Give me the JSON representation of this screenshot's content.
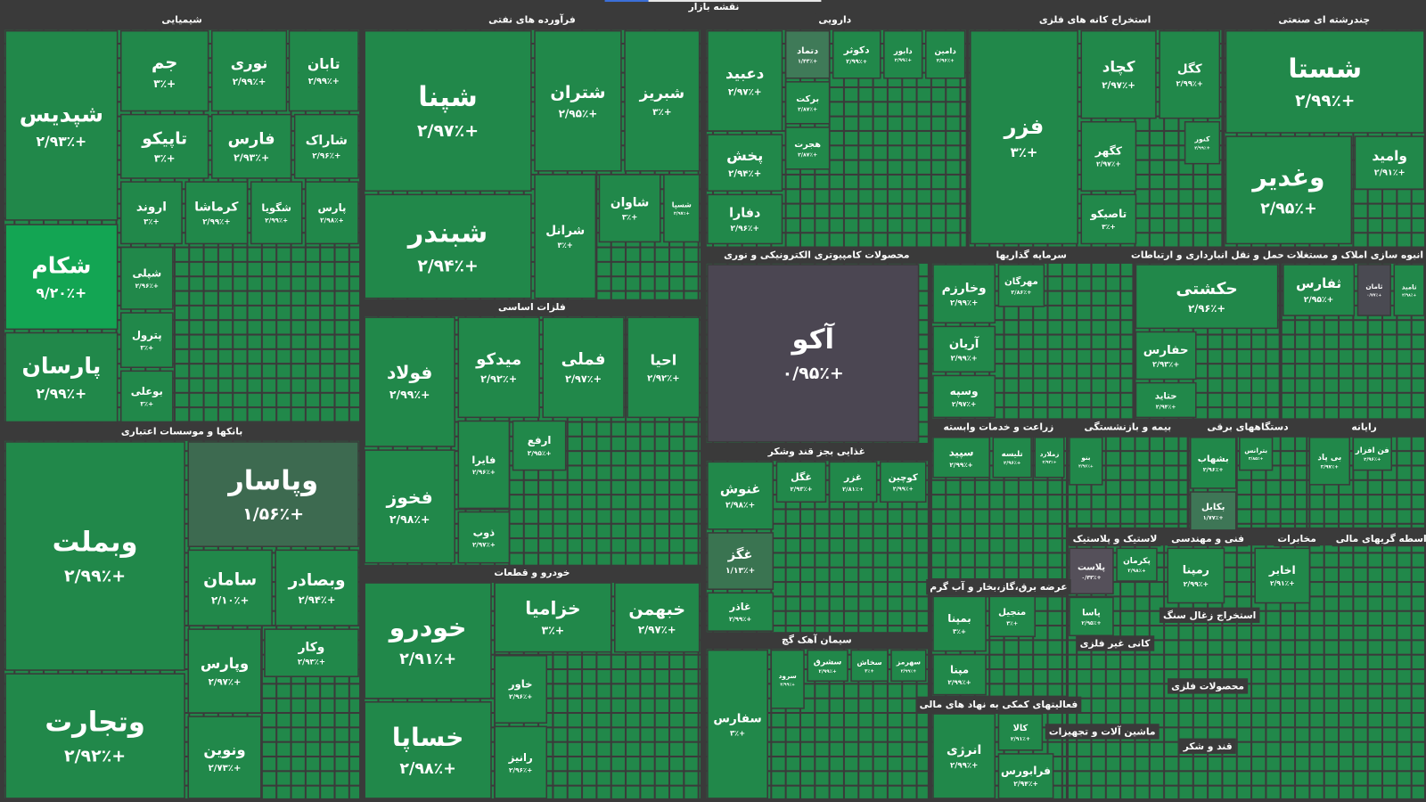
{
  "chart_data": {
    "type": "treemap",
    "title": "نقشه بازار",
    "color": "#21884a",
    "sectors": [
      {
        "name": "شیمیایی",
        "tiles": [
          {
            "name": "شپدیس",
            "value": 2.93,
            "value_label": "+۲/۹۳٪"
          },
          {
            "name": "جم",
            "value": 3,
            "value_label": "+۳٪"
          },
          {
            "name": "نوری",
            "value": 2.99,
            "value_label": "+۲/۹۹٪"
          },
          {
            "name": "تابان",
            "value": 2.99,
            "value_label": "+۲/۹۹٪"
          },
          {
            "name": "تاپیکو",
            "value": 3,
            "value_label": "+۳٪"
          },
          {
            "name": "فارس",
            "value": 2.93,
            "value_label": "+۲/۹۳٪"
          },
          {
            "name": "شاراک",
            "value": 2.96,
            "value_label": "+۲/۹۶٪"
          },
          {
            "name": "شکام",
            "value": 9.2,
            "value_label": "+۹/۲۰٪",
            "color": "#13a553"
          },
          {
            "name": "اروند",
            "value": 3,
            "value_label": "+۳٪"
          },
          {
            "name": "کرماشا",
            "value": 2.99,
            "value_label": "+۲/۹۹٪"
          },
          {
            "name": "شگویا",
            "value": 2.99,
            "value_label": "+۲/۹۹٪"
          },
          {
            "name": "پارس",
            "value": 2.98,
            "value_label": "+۲/۹۸٪"
          },
          {
            "name": "پارسان",
            "value": 2.99,
            "value_label": "+۲/۹۹٪"
          },
          {
            "name": "شپلی",
            "value": 2.96,
            "value_label": "+۲/۹۶٪"
          },
          {
            "name": "پترول",
            "value": 3,
            "value_label": "+۳٪"
          },
          {
            "name": "بوعلی",
            "value": 3,
            "value_label": "+۳٪"
          }
        ]
      },
      {
        "name": "بانکها و موسسات اعتباری",
        "tiles": [
          {
            "name": "وبملت",
            "value": 2.99,
            "value_label": "+۲/۹۹٪"
          },
          {
            "name": "وپاسار",
            "value": 1.56,
            "value_label": "+۱/۵۶٪",
            "color": "#3d6a50"
          },
          {
            "name": "وتجارت",
            "value": 2.92,
            "value_label": "+۲/۹۲٪"
          },
          {
            "name": "سامان",
            "value": 2.1,
            "value_label": "+۲/۱۰٪"
          },
          {
            "name": "وبصادر",
            "value": 2.94,
            "value_label": "+۲/۹۴٪"
          },
          {
            "name": "وپارس",
            "value": 2.97,
            "value_label": "+۲/۹۷٪"
          },
          {
            "name": "ونوین",
            "value": 2.73,
            "value_label": "+۲/۷۳٪"
          },
          {
            "name": "وکار",
            "value": 2.93,
            "value_label": "+۲/۹۳٪"
          }
        ]
      },
      {
        "name": "فرآورده های نفتی",
        "tiles": [
          {
            "name": "شپنا",
            "value": 2.97,
            "value_label": "+۲/۹۷٪"
          },
          {
            "name": "شتران",
            "value": 2.95,
            "value_label": "+۲/۹۵٪"
          },
          {
            "name": "شبریز",
            "value": 3,
            "value_label": "+۳٪"
          },
          {
            "name": "شبندر",
            "value": 2.94,
            "value_label": "+۲/۹۴٪"
          },
          {
            "name": "شرانل",
            "value": 3,
            "value_label": "+۳٪"
          },
          {
            "name": "شاوان",
            "value": 3,
            "value_label": "+۳٪"
          },
          {
            "name": "شسپا",
            "value": 2.97,
            "value_label": "+۲/۹۷٪"
          }
        ]
      },
      {
        "name": "فلزات اساسی",
        "tiles": [
          {
            "name": "فولاد",
            "value": 2.99,
            "value_label": "+۲/۹۹٪"
          },
          {
            "name": "میدکو",
            "value": 2.92,
            "value_label": "+۲/۹۲٪"
          },
          {
            "name": "فملی",
            "value": 2.97,
            "value_label": "+۲/۹۷٪"
          },
          {
            "name": "احیا",
            "value": 2.92,
            "value_label": "+۲/۹۲٪"
          },
          {
            "name": "فخوز",
            "value": 2.98,
            "value_label": "+۲/۹۸٪"
          },
          {
            "name": "فایرا",
            "value": 2.96,
            "value_label": "+۲/۹۶٪"
          },
          {
            "name": "ذوب",
            "value": 2.97,
            "value_label": "+۲/۹۷٪"
          },
          {
            "name": "ارفع",
            "value": 2.95,
            "value_label": "+۲/۹۵٪"
          }
        ]
      },
      {
        "name": "خودرو و قطعات",
        "tiles": [
          {
            "name": "خودرو",
            "value": 2.91,
            "value_label": "+۲/۹۱٪"
          },
          {
            "name": "خساپا",
            "value": 2.98,
            "value_label": "+۲/۹۸٪"
          },
          {
            "name": "خزامیا",
            "value": 3,
            "value_label": "+۳٪"
          },
          {
            "name": "خبهمن",
            "value": 2.97,
            "value_label": "+۲/۹۷٪"
          },
          {
            "name": "خاور",
            "value": 2.96,
            "value_label": "+۲/۹۶٪"
          },
          {
            "name": "رانیز",
            "value": 2.96,
            "value_label": "+۲/۹۶٪"
          }
        ]
      },
      {
        "name": "دارویی",
        "tiles": [
          {
            "name": "دعبید",
            "value": 2.97,
            "value_label": "+۲/۹۷٪"
          },
          {
            "name": "پخش",
            "value": 2.94,
            "value_label": "+۲/۹۴٪"
          },
          {
            "name": "دفارا",
            "value": 2.96,
            "value_label": "+۲/۹۶٪"
          },
          {
            "name": "دتماد",
            "value": 1.43,
            "value_label": "+۱/۴۳٪",
            "color": "#3f7a58"
          },
          {
            "name": "دکوثر",
            "value": 2.99,
            "value_label": "+۲/۹۹٪"
          },
          {
            "name": "دابور",
            "value": 2.99,
            "value_label": "+۲/۹۹٪"
          },
          {
            "name": "دامین",
            "value": 2.96,
            "value_label": "+۲/۹۶٪"
          },
          {
            "name": "برکت",
            "value": 2.87,
            "value_label": "+۲/۸۷٪"
          },
          {
            "name": "هجرت",
            "value": 2.87,
            "value_label": "+۲/۸۷٪"
          }
        ]
      },
      {
        "name": "محصولات کامپیوتری الکترونیکی و نوری",
        "tiles": [
          {
            "name": "آکو",
            "value": 0.95,
            "value_label": "+۰/۹۵٪",
            "color": "#4b4652"
          }
        ]
      },
      {
        "name": "غذایی بجز قند وشکر",
        "tiles": [
          {
            "name": "غنوش",
            "value": 2.98,
            "value_label": "+۲/۹۸٪"
          },
          {
            "name": "غگز",
            "value": 1.13,
            "value_label": "+۱/۱۳٪",
            "color": "#3a7451"
          },
          {
            "name": "غاذر",
            "value": 2.99,
            "value_label": "+۲/۹۹٪"
          },
          {
            "name": "غگل",
            "value": 2.93,
            "value_label": "+۲/۹۳٪"
          },
          {
            "name": "غزر",
            "value": 2.81,
            "value_label": "+۲/۸۱٪"
          },
          {
            "name": "کوچین",
            "value": 2.99,
            "value_label": "+۲/۹۹٪"
          }
        ]
      },
      {
        "name": "سیمان آهک گچ",
        "tiles": [
          {
            "name": "سفارس",
            "value": 3,
            "value_label": "+۳٪"
          },
          {
            "name": "سرود",
            "value": 2.99,
            "value_label": "+۲/۹۹٪"
          },
          {
            "name": "سشرق",
            "value": 2.99,
            "value_label": "+۲/۹۹٪"
          },
          {
            "name": "سخاش",
            "value": 3,
            "value_label": "+۳٪"
          },
          {
            "name": "سهرمز",
            "value": 2.99,
            "value_label": "+۲/۹۹٪"
          }
        ]
      },
      {
        "name": "استخراج کانه های فلزی",
        "tiles": [
          {
            "name": "فزر",
            "value": 3,
            "value_label": "+۳٪"
          },
          {
            "name": "کچاد",
            "value": 2.97,
            "value_label": "+۲/۹۷٪"
          },
          {
            "name": "کگل",
            "value": 2.99,
            "value_label": "+۲/۹۹٪"
          },
          {
            "name": "کگهر",
            "value": 2.97,
            "value_label": "+۲/۹۷٪"
          },
          {
            "name": "تاصیکو",
            "value": 3,
            "value_label": "+۳٪"
          },
          {
            "name": "کنور",
            "value": 2.99,
            "value_label": "+۲/۹۹٪"
          }
        ]
      },
      {
        "name": "چندرشته ای صنعتی",
        "tiles": [
          {
            "name": "شستا",
            "value": 2.99,
            "value_label": "+۲/۹۹٪"
          },
          {
            "name": "وغدیر",
            "value": 2.95,
            "value_label": "+۲/۹۵٪"
          },
          {
            "name": "وامید",
            "value": 2.91,
            "value_label": "+۲/۹۱٪"
          }
        ]
      },
      {
        "name": "سرمایه گذاریها",
        "tiles": [
          {
            "name": "وخارزم",
            "value": 2.99,
            "value_label": "+۲/۹۹٪"
          },
          {
            "name": "مهرگان",
            "value": 2.86,
            "value_label": "+۲/۸۶٪"
          },
          {
            "name": "آریان",
            "value": 2.99,
            "value_label": "+۲/۹۹٪"
          },
          {
            "name": "وسپه",
            "value": 2.97,
            "value_label": "+۲/۹۷٪"
          }
        ]
      },
      {
        "name": "حمل و نقل انبارداری و ارتباطات",
        "tiles": [
          {
            "name": "حکشتی",
            "value": 2.96,
            "value_label": "+۲/۹۶٪"
          },
          {
            "name": "حفارس",
            "value": 2.93,
            "value_label": "+۲/۹۳٪"
          },
          {
            "name": "حتاید",
            "value": 2.94,
            "value_label": "+۲/۹۴٪"
          }
        ]
      },
      {
        "name": "انبوه سازی املاک و مستغلات",
        "tiles": [
          {
            "name": "ثفارس",
            "value": 2.95,
            "value_label": "+۲/۹۵٪"
          },
          {
            "name": "ثامان",
            "value": 0.77,
            "value_label": "+۰/۷۷٪",
            "color": "#4a4a52"
          },
          {
            "name": "ثامید",
            "value": 2.98,
            "value_label": "+۲/۹۸٪"
          }
        ]
      },
      {
        "name": "زراعت و خدمات وابسته",
        "tiles": [
          {
            "name": "سپید",
            "value": 2.99,
            "value_label": "+۲/۹۹٪"
          },
          {
            "name": "تلیسه",
            "value": 2.96,
            "value_label": "+۲/۹۶٪"
          },
          {
            "name": "زملارد",
            "value": 2.93,
            "value_label": "+۲/۹۳٪"
          }
        ]
      },
      {
        "name": "بیمه و بازنشستگی",
        "tiles": [
          {
            "name": "بنو",
            "value": 2.96,
            "value_label": "+۲/۹۶٪"
          }
        ]
      },
      {
        "name": "دستگاههای برقی",
        "tiles": [
          {
            "name": "بشهاب",
            "value": 2.96,
            "value_label": "+۲/۹۶٪"
          },
          {
            "name": "بترانس",
            "value": 2.85,
            "value_label": "+۲/۸۵٪"
          },
          {
            "name": "بکابل",
            "value": 1.77,
            "value_label": "+۱/۷۷٪",
            "color": "#3e7656"
          }
        ]
      },
      {
        "name": "رایانه",
        "tiles": [
          {
            "name": "بی پاد",
            "value": 2.97,
            "value_label": "+۲/۹۷٪"
          },
          {
            "name": "فن افزار",
            "value": 2.96,
            "value_label": "+۲/۹۶٪"
          }
        ]
      },
      {
        "name": "عرضه برق،گاز،بخار و آب گرم",
        "tiles": [
          {
            "name": "بمپنا",
            "value": 3,
            "value_label": "+۳٪"
          },
          {
            "name": "مپنا",
            "value": 2.99,
            "value_label": "+۲/۹۹٪"
          },
          {
            "name": "منجیل",
            "value": 3,
            "value_label": "+۳٪"
          }
        ]
      },
      {
        "name": "فعالیتهای کمکی به نهاد های مالی",
        "tiles": [
          {
            "name": "انرژی",
            "value": 2.99,
            "value_label": "+۲/۹۹٪"
          },
          {
            "name": "کالا",
            "value": 2.91,
            "value_label": "+۲/۹۱٪"
          },
          {
            "name": "فرابورس",
            "value": 2.94,
            "value_label": "+۲/۹۴٪"
          }
        ]
      },
      {
        "name": "لاستیک و پلاستیک",
        "tiles": [
          {
            "name": "پلاست",
            "value": 0.33,
            "value_label": "+۰/۳۳٪",
            "color": "#55505a"
          },
          {
            "name": "پاسا",
            "value": 2.95,
            "value_label": "+۲/۹۵٪"
          },
          {
            "name": "پکرمان",
            "value": 2.98,
            "value_label": "+۲/۹۸٪"
          }
        ]
      },
      {
        "name": "فنی و مهندسی",
        "tiles": [
          {
            "name": "رمپنا",
            "value": 2.99,
            "value_label": "+۲/۹۹٪"
          }
        ]
      },
      {
        "name": "مخابرات",
        "tiles": [
          {
            "name": "اخابر",
            "value": 2.91,
            "value_label": "+۲/۹۱٪"
          }
        ]
      },
      {
        "name": "واسطه گریهای مالی",
        "tiles": []
      },
      {
        "name": "کانی غیر فلزی",
        "tiles": []
      },
      {
        "name": "ماشین آلات و تجهیزات",
        "tiles": []
      },
      {
        "name": "استخراج زغال سنگ",
        "tiles": []
      },
      {
        "name": "محصولات فلزی",
        "tiles": []
      },
      {
        "name": "قند و شکر",
        "tiles": []
      }
    ]
  }
}
